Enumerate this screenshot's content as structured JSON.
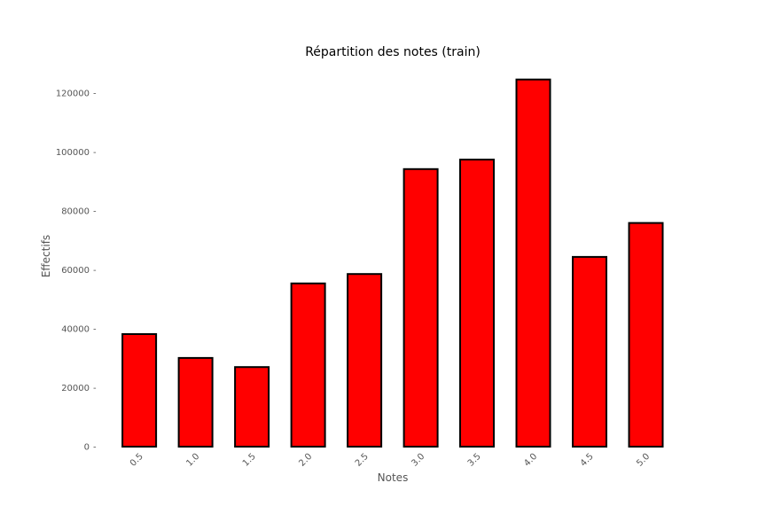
{
  "chart_data": {
    "type": "bar",
    "title": "Répartition des notes (train)",
    "xlabel": "Notes",
    "ylabel": "Effectifs",
    "categories": [
      "0.5",
      "1.0",
      "1.5",
      "2.0",
      "2.5",
      "3.0",
      "3.5",
      "4.0",
      "4.5",
      "5.0"
    ],
    "values": [
      38200,
      30100,
      27000,
      55400,
      58600,
      94200,
      97400,
      124600,
      64400,
      75900
    ],
    "ylim": [
      0,
      130000
    ],
    "yticks": [
      0,
      20000,
      40000,
      60000,
      80000,
      100000,
      120000
    ],
    "ytick_labels": [
      "0",
      "20000",
      "40000",
      "60000",
      "80000",
      "100000",
      "120000"
    ],
    "grid": false,
    "colors": {
      "bar_fill": "#ff0000",
      "bar_edge": "#000000",
      "tick_text": "#555555",
      "title_text": "#000000"
    }
  }
}
